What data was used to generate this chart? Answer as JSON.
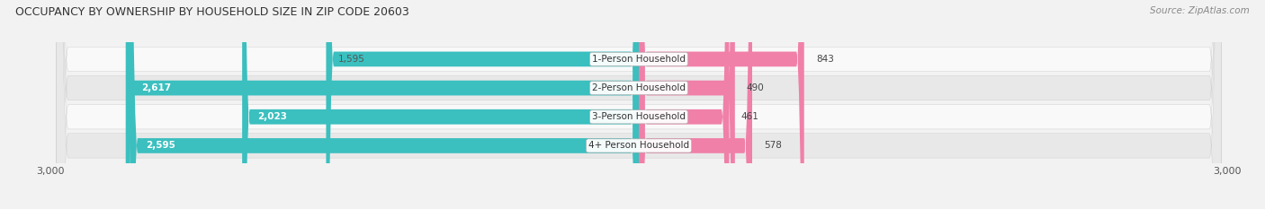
{
  "title": "OCCUPANCY BY OWNERSHIP BY HOUSEHOLD SIZE IN ZIP CODE 20603",
  "source": "Source: ZipAtlas.com",
  "categories": [
    "1-Person Household",
    "2-Person Household",
    "3-Person Household",
    "4+ Person Household"
  ],
  "owner_values": [
    1595,
    2617,
    2023,
    2595
  ],
  "renter_values": [
    843,
    490,
    461,
    578
  ],
  "owner_color": "#3BBFBF",
  "renter_color": "#F080A8",
  "axis_max": 3000,
  "fig_bg": "#f2f2f2",
  "row_bg_light": "#f9f9f9",
  "row_bg_dark": "#e8e8e8"
}
